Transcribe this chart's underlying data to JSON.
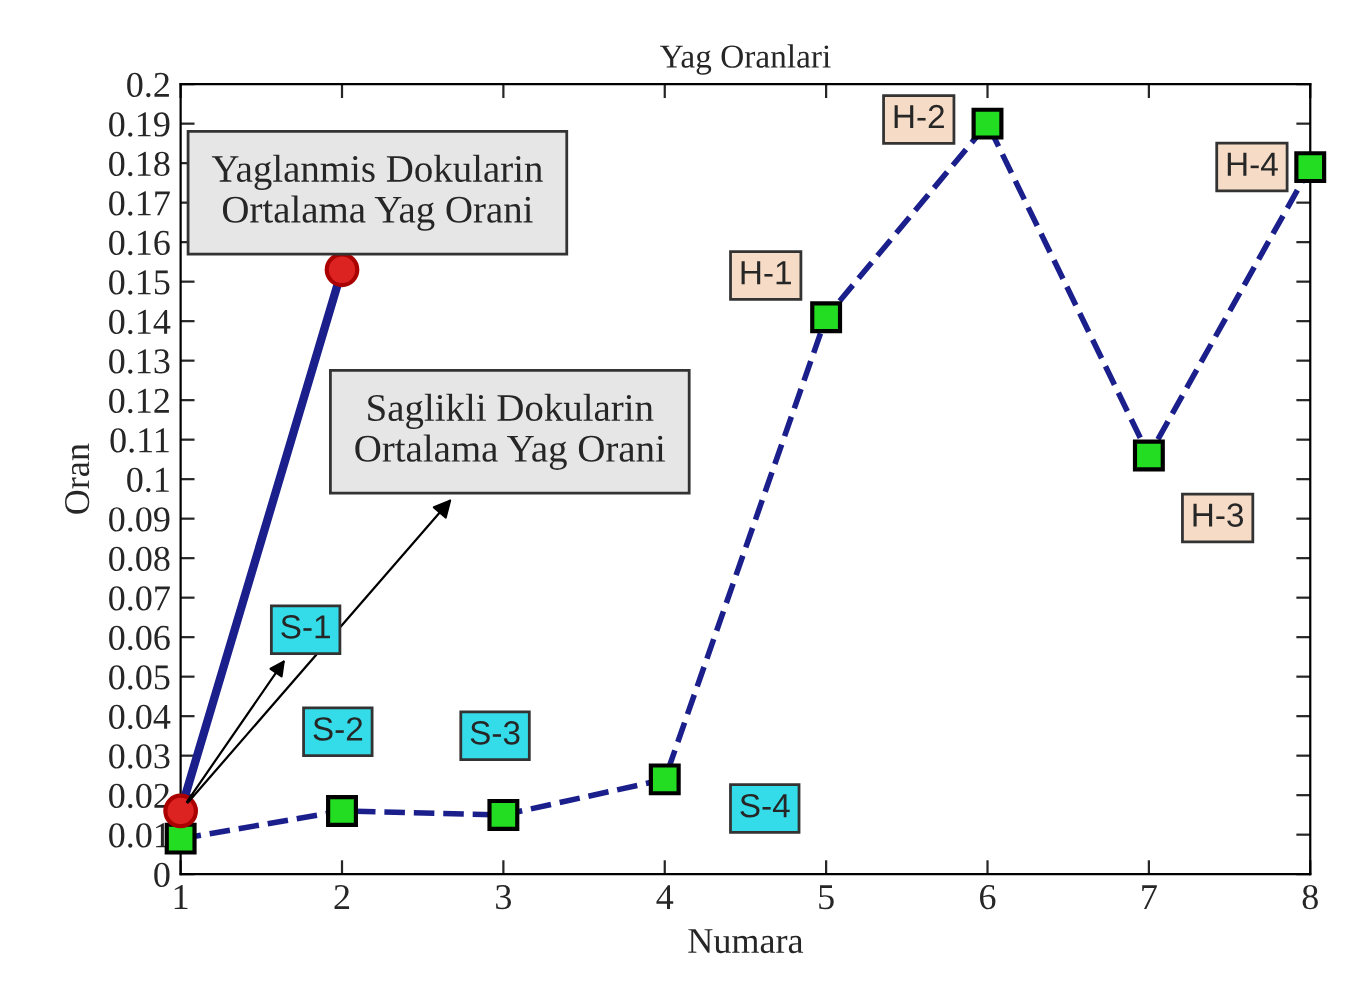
{
  "chart_data": {
    "type": "line",
    "title": "Yag Oranlari",
    "xlabel": "Numara",
    "ylabel": "Oran",
    "xlim": [
      1,
      8
    ],
    "xticks": [
      1,
      2,
      3,
      4,
      5,
      6,
      7,
      8
    ],
    "ylim": [
      0,
      0.2
    ],
    "yticks": [
      0,
      0.01,
      0.02,
      0.03,
      0.04,
      0.05,
      0.06,
      0.07,
      0.08,
      0.09,
      0.1,
      0.11,
      0.12,
      0.13,
      0.14,
      0.15,
      0.16,
      0.17,
      0.18,
      0.19,
      0.2
    ],
    "grid": false,
    "series": [
      {
        "color": "#1a1f8c",
        "x": [
          1,
          2,
          3,
          4,
          5,
          6,
          7,
          8
        ],
        "values": [
          0.009,
          0.016,
          0.015,
          0.024,
          0.141,
          0.19,
          0.106,
          0.179
        ],
        "marker": "square",
        "line_style": "dashed"
      },
      {
        "color": "#1a1f8c",
        "x": [
          1,
          2
        ],
        "values": [
          0.016,
          0.153
        ],
        "marker": "circle",
        "line_style": "solid"
      }
    ],
    "annotations": [
      {
        "text": "Yaglanmis Dokularin\nOrtalama Yag Orani",
        "x": 2,
        "y": 0.153
      },
      {
        "text": "Saglikli Dokularin\nOrtalama Yag Orani",
        "x": 1,
        "y": 0.016
      },
      {
        "text": "S-1",
        "x": 1,
        "y": 0.016
      },
      {
        "text": "S-2",
        "x": 2,
        "y": 0.016
      },
      {
        "text": "S-3",
        "x": 3,
        "y": 0.015
      },
      {
        "text": "S-4",
        "x": 4,
        "y": 0.024
      },
      {
        "text": "H-1",
        "x": 5,
        "y": 0.141
      },
      {
        "text": "H-2",
        "x": 6,
        "y": 0.19
      },
      {
        "text": "H-3",
        "x": 7,
        "y": 0.106
      },
      {
        "text": "H-4",
        "x": 8,
        "y": 0.179
      }
    ]
  }
}
